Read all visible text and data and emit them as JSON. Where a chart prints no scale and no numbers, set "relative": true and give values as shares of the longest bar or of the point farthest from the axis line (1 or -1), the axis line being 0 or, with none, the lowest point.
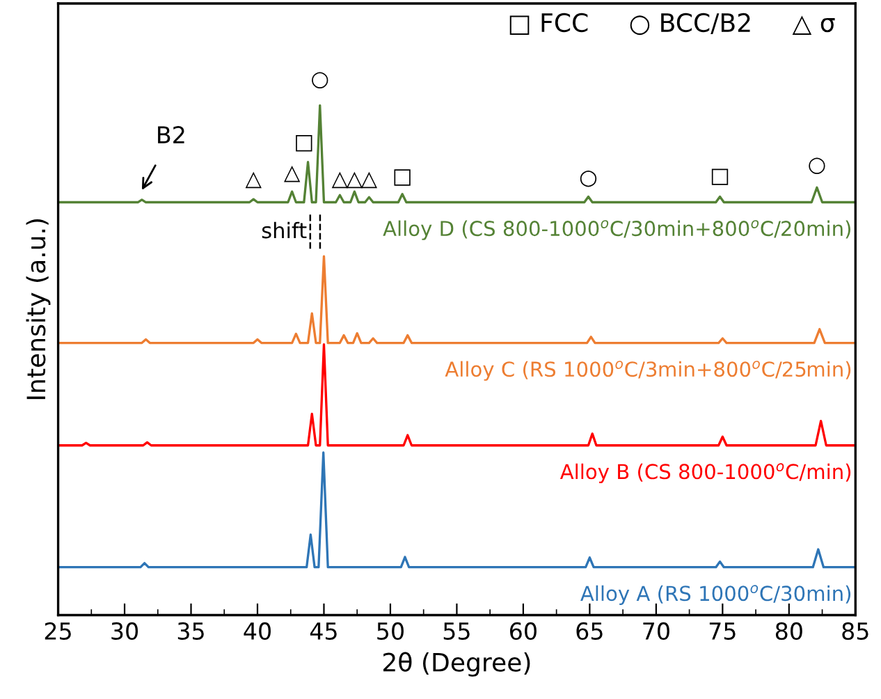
{
  "chart_data": {
    "type": "line",
    "xlabel": "2θ (Degree)",
    "ylabel": "Intensity (a.u.)",
    "relative": true,
    "xlim": [
      25,
      85
    ],
    "xticks": [
      25,
      30,
      35,
      40,
      45,
      50,
      55,
      60,
      65,
      70,
      75,
      80,
      85
    ],
    "grid": false,
    "legend": false,
    "line_style": "solid",
    "marker": "none",
    "series": [
      {
        "name": "Alloy A (RS 1000$^{o}$C/30min)",
        "color": "#2e75b6",
        "x": [
          25,
          31.2,
          31.5,
          31.8,
          43.7,
          44.0,
          44.3,
          44.6,
          44.96,
          45.3,
          50.8,
          51.1,
          51.4,
          64.7,
          65.0,
          65.3,
          74.5,
          74.8,
          75.1,
          81.8,
          82.2,
          82.6,
          85
        ],
        "values": [
          0.094,
          0.094,
          0.102,
          0.094,
          0.094,
          0.158,
          0.094,
          0.094,
          0.319,
          0.094,
          0.094,
          0.114,
          0.094,
          0.094,
          0.113,
          0.094,
          0.094,
          0.105,
          0.094,
          0.094,
          0.129,
          0.094,
          0.094
        ]
      },
      {
        "name": "Alloy B (CS 800-1000$^{o}$C/min)",
        "color": "#ff0000",
        "x": [
          25,
          26.8,
          27.1,
          27.4,
          31.4,
          31.7,
          32.0,
          43.8,
          44.1,
          44.4,
          44.7,
          45.0,
          45.3,
          51.0,
          51.3,
          51.6,
          64.9,
          65.2,
          65.5,
          74.7,
          75.0,
          75.3,
          82.0,
          82.4,
          82.8,
          85
        ],
        "values": [
          0.333,
          0.333,
          0.338,
          0.333,
          0.333,
          0.339,
          0.333,
          0.333,
          0.395,
          0.333,
          0.333,
          0.531,
          0.333,
          0.333,
          0.353,
          0.333,
          0.333,
          0.356,
          0.333,
          0.333,
          0.35,
          0.333,
          0.333,
          0.381,
          0.333,
          0.333
        ]
      },
      {
        "name": "Alloy C (RS 1000$^{o}$C/3min+800$^{o}$C/25min)",
        "color": "#ed7d31",
        "x": [
          25,
          31.3,
          31.6,
          31.9,
          39.7,
          40.0,
          40.3,
          42.6,
          42.9,
          43.2,
          43.8,
          44.1,
          44.4,
          44.7,
          45.0,
          45.3,
          46.2,
          46.5,
          46.8,
          47.2,
          47.5,
          47.8,
          48.4,
          48.7,
          49.0,
          51.0,
          51.3,
          51.6,
          64.8,
          65.1,
          65.4,
          74.7,
          75.0,
          75.3,
          81.9,
          82.3,
          82.7,
          85
        ],
        "values": [
          0.534,
          0.534,
          0.541,
          0.534,
          0.534,
          0.541,
          0.534,
          0.534,
          0.552,
          0.534,
          0.534,
          0.592,
          0.534,
          0.534,
          0.704,
          0.534,
          0.534,
          0.549,
          0.534,
          0.534,
          0.553,
          0.534,
          0.534,
          0.543,
          0.534,
          0.534,
          0.549,
          0.534,
          0.534,
          0.546,
          0.534,
          0.534,
          0.543,
          0.534,
          0.534,
          0.561,
          0.534,
          0.534
        ]
      },
      {
        "name": "Alloy D (CS 800-1000$^{o}$C/30min+800$^{o}$C/20min)",
        "color": "#548235",
        "x": [
          25,
          31.0,
          31.3,
          31.6,
          39.4,
          39.7,
          40.0,
          42.3,
          42.6,
          42.9,
          43.5,
          43.8,
          44.1,
          44.4,
          44.7,
          45.0,
          45.9,
          46.2,
          46.5,
          47.0,
          47.3,
          47.6,
          48.1,
          48.4,
          48.7,
          50.6,
          50.9,
          51.2,
          64.6,
          64.9,
          65.2,
          74.5,
          74.8,
          75.1,
          81.7,
          82.1,
          82.5,
          85
        ],
        "values": [
          0.81,
          0.81,
          0.815,
          0.81,
          0.81,
          0.816,
          0.81,
          0.81,
          0.831,
          0.81,
          0.81,
          0.889,
          0.81,
          0.81,
          1.0,
          0.81,
          0.81,
          0.824,
          0.81,
          0.81,
          0.831,
          0.81,
          0.81,
          0.82,
          0.81,
          0.81,
          0.826,
          0.81,
          0.81,
          0.821,
          0.81,
          0.81,
          0.821,
          0.81,
          0.81,
          0.839,
          0.81,
          0.81
        ]
      },
      {
        "color": "#000000",
        "line_style": "dashed",
        "x": [
          43.97,
          43.97
        ],
        "values": [
          0.719,
          0.786
        ]
      },
      {
        "color": "#000000",
        "line_style": "dashed",
        "x": [
          44.71,
          44.71
        ],
        "values": [
          0.719,
          0.786
        ]
      }
    ],
    "annotations": [
      "□ FCC     ○ BCC/B2     △ σ",
      "B2",
      "shift",
      "△",
      "△",
      "□",
      "○",
      "△",
      "△",
      "△",
      "□",
      "○",
      "□",
      "○"
    ]
  }
}
